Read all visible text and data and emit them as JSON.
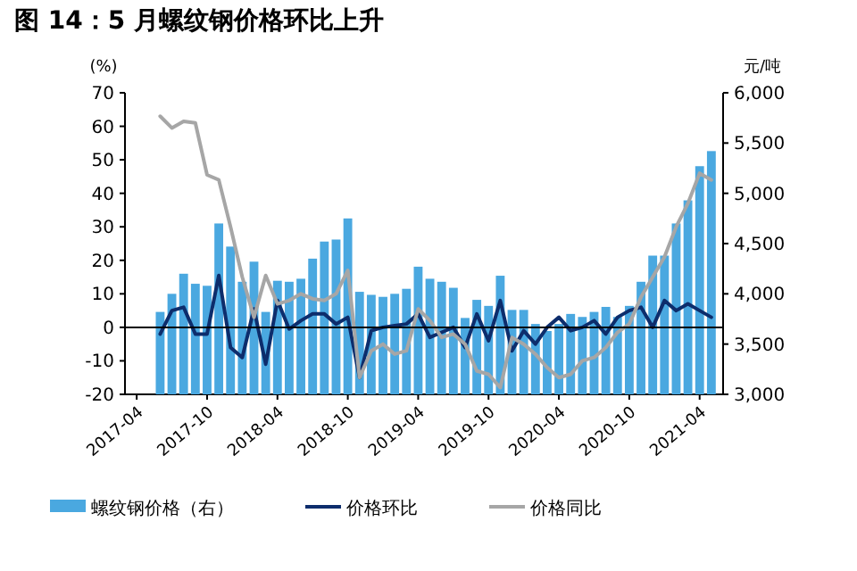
{
  "chart_data": {
    "type": "bar",
    "title": "图 14：5 月螺纹钢价格环比上升",
    "ylabel": "(%)",
    "y2label": "元/吨",
    "x": [
      "2017-06",
      "2017-07",
      "2017-08",
      "2017-09",
      "2017-10",
      "2017-11",
      "2017-12",
      "2018-01",
      "2018-02",
      "2018-03",
      "2018-04",
      "2018-05",
      "2018-06",
      "2018-07",
      "2018-08",
      "2018-09",
      "2018-10",
      "2018-11",
      "2018-12",
      "2019-01",
      "2019-02",
      "2019-03",
      "2019-04",
      "2019-05",
      "2019-06",
      "2019-07",
      "2019-08",
      "2019-09",
      "2019-10",
      "2019-11",
      "2019-12",
      "2020-01",
      "2020-02",
      "2020-03",
      "2020-04",
      "2020-05",
      "2020-06",
      "2020-07",
      "2020-08",
      "2020-09",
      "2020-10",
      "2020-11",
      "2020-12",
      "2021-01",
      "2021-02",
      "2021-03",
      "2021-04",
      "2021-05"
    ],
    "series": [
      {
        "name": "螺纹钢价格（右）",
        "axis": "y2",
        "color": "#4aa8e0",
        "values": [
          3820,
          4000,
          4200,
          4100,
          4080,
          4700,
          4470,
          4120,
          4320,
          3820,
          4130,
          4120,
          4150,
          4350,
          4520,
          4540,
          4750,
          4020,
          3990,
          3970,
          4000,
          4050,
          4270,
          4150,
          4120,
          4060,
          3760,
          3940,
          3880,
          4180,
          3840,
          3840,
          3700,
          3630,
          3700,
          3800,
          3770,
          3820,
          3870,
          3770,
          3880,
          4120,
          4380,
          4380,
          4700,
          4930,
          5270,
          5420
        ]
      },
      {
        "name": "价格环比",
        "type": "line",
        "color": "#0d2d6c",
        "values": [
          -2,
          5,
          6,
          -2,
          -2,
          15.5,
          -6,
          -9,
          5.5,
          -11,
          8,
          -0.5,
          2,
          4,
          4,
          1,
          3,
          -15,
          -1,
          0,
          0.5,
          1,
          4,
          -3,
          -1.5,
          0,
          -6,
          4,
          -4,
          8,
          -7,
          -1,
          -5,
          0,
          3,
          -1,
          0,
          2,
          -2,
          3,
          5,
          6,
          0,
          8,
          5,
          7,
          5,
          3
        ]
      },
      {
        "name": "价格同比",
        "type": "line",
        "color": "#a6a6a6",
        "values": [
          63,
          59.5,
          61.5,
          61,
          45.5,
          44,
          30,
          15,
          3,
          15.5,
          7,
          8,
          10,
          8.5,
          8,
          10,
          17,
          -15,
          -7,
          -5,
          -8,
          -7,
          5.5,
          2,
          -3,
          -2,
          -5,
          -13,
          -14,
          -18,
          -3,
          -5,
          -8,
          -12,
          -15,
          -14,
          -10,
          -9,
          -6,
          -1.5,
          1,
          9,
          15,
          21,
          30,
          37,
          46,
          44
        ]
      }
    ],
    "xlim": [
      "2017-03",
      "2021-06"
    ],
    "xticks": [
      {
        "value": "2017-04",
        "label": "2017-04"
      },
      {
        "value": "2017-10",
        "label": "2017-10"
      },
      {
        "value": "2018-04",
        "label": "2018-04"
      },
      {
        "value": "2018-10",
        "label": "2018-10"
      },
      {
        "value": "2019-04",
        "label": "2019-04"
      },
      {
        "value": "2019-10",
        "label": "2019-10"
      },
      {
        "value": "2020-04",
        "label": "2020-04"
      },
      {
        "value": "2020-10",
        "label": "2020-10"
      },
      {
        "value": "2021-04",
        "label": "2021-04"
      }
    ],
    "ylim": [
      -20,
      70
    ],
    "yticks": [
      -20,
      -10,
      0,
      10,
      20,
      30,
      40,
      50,
      60,
      70
    ],
    "y2lim": [
      3000,
      6000
    ],
    "y2ticks": [
      {
        "value": 3000,
        "label": "3,000"
      },
      {
        "value": 3500,
        "label": "3,500"
      },
      {
        "value": 4000,
        "label": "4,000"
      },
      {
        "value": 4500,
        "label": "4,500"
      },
      {
        "value": 5000,
        "label": "5,000"
      },
      {
        "value": 5500,
        "label": "5,500"
      },
      {
        "value": 6000,
        "label": "6,000"
      }
    ],
    "ref_lines": [
      {
        "axis": "y",
        "value": 0,
        "color": "#000000"
      }
    ],
    "legend": "bottom"
  }
}
